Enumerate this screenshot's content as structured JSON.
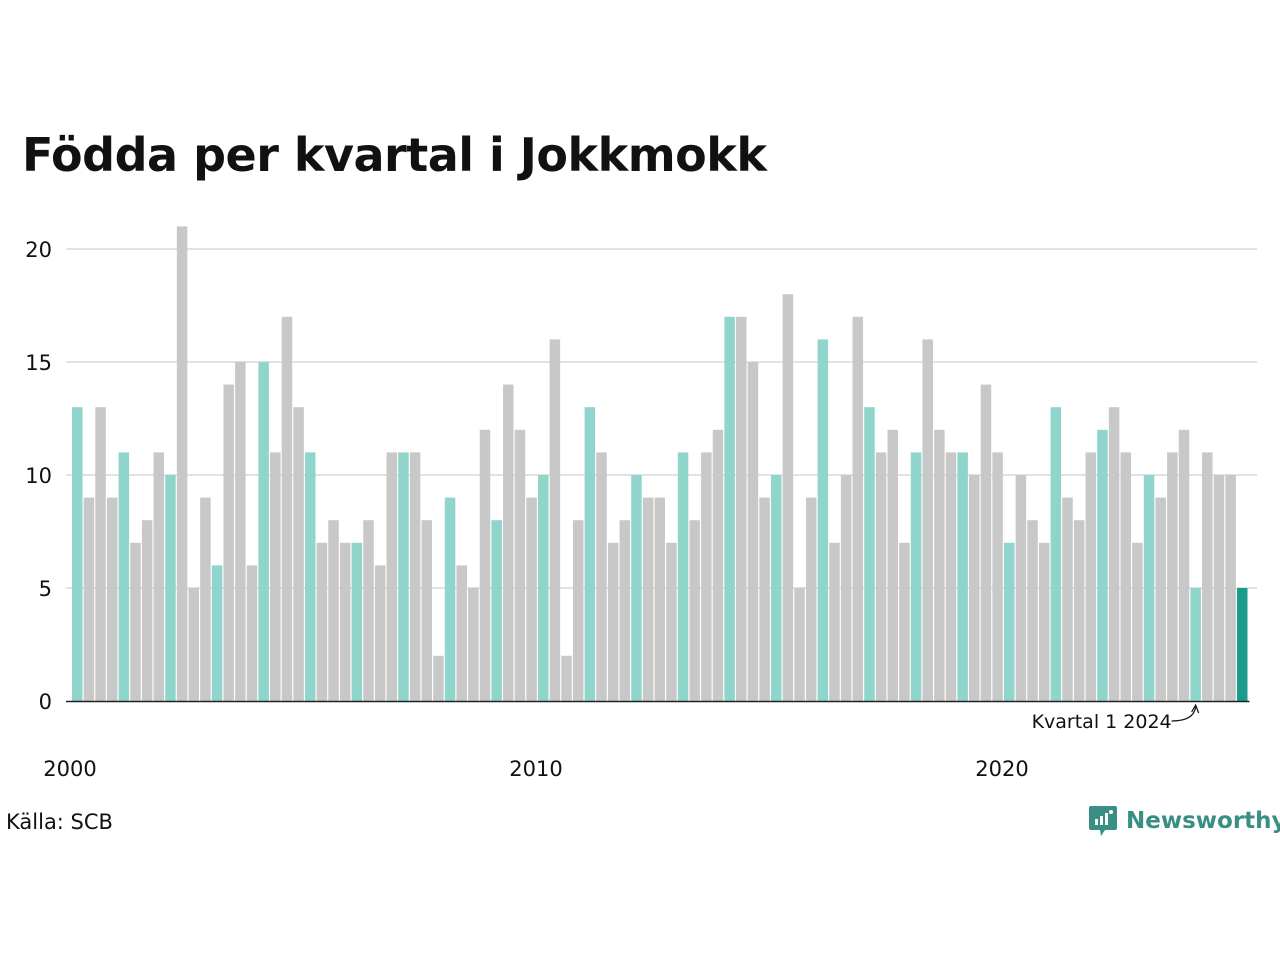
{
  "chart_data": {
    "type": "bar",
    "title": "Födda per kvartal i Jokkmokk",
    "xlabel": "",
    "ylabel": "",
    "ylim": [
      0,
      21
    ],
    "yticks": [
      0,
      5,
      10,
      15,
      20
    ],
    "xticks": [
      {
        "label": "2000",
        "index": 0
      },
      {
        "label": "2010",
        "index": 40
      },
      {
        "label": "2020",
        "index": 80
      }
    ],
    "start": {
      "year": 2000,
      "quarter": 1
    },
    "values": [
      13,
      9,
      13,
      9,
      11,
      7,
      8,
      11,
      10,
      21,
      5,
      9,
      6,
      14,
      15,
      6,
      15,
      11,
      17,
      13,
      11,
      7,
      8,
      7,
      7,
      8,
      6,
      11,
      11,
      11,
      8,
      2,
      9,
      6,
      5,
      12,
      8,
      14,
      12,
      9,
      10,
      16,
      2,
      8,
      13,
      11,
      7,
      8,
      10,
      9,
      9,
      7,
      11,
      8,
      11,
      12,
      17,
      17,
      15,
      9,
      10,
      18,
      5,
      9,
      16,
      7,
      10,
      17,
      13,
      11,
      12,
      7,
      11,
      16,
      12,
      11,
      11,
      10,
      14,
      11,
      7,
      10,
      8,
      7,
      13,
      9,
      8,
      11,
      12,
      13,
      11,
      7,
      10,
      9,
      11,
      12,
      5,
      11,
      10,
      10,
      5
    ],
    "colors": {
      "q1": "#8fd5cc",
      "other": "#c8c8c8",
      "latest": "#1a9b8c",
      "grid": "#e2e2e2",
      "axis": "#222222"
    },
    "annotation": {
      "text": "Kvartal 1 2024",
      "index": 96
    },
    "grid": true
  },
  "footer": {
    "source": "Källa: SCB",
    "brand": "Newsworthy",
    "brand_icon": "chart-bubble-icon"
  }
}
